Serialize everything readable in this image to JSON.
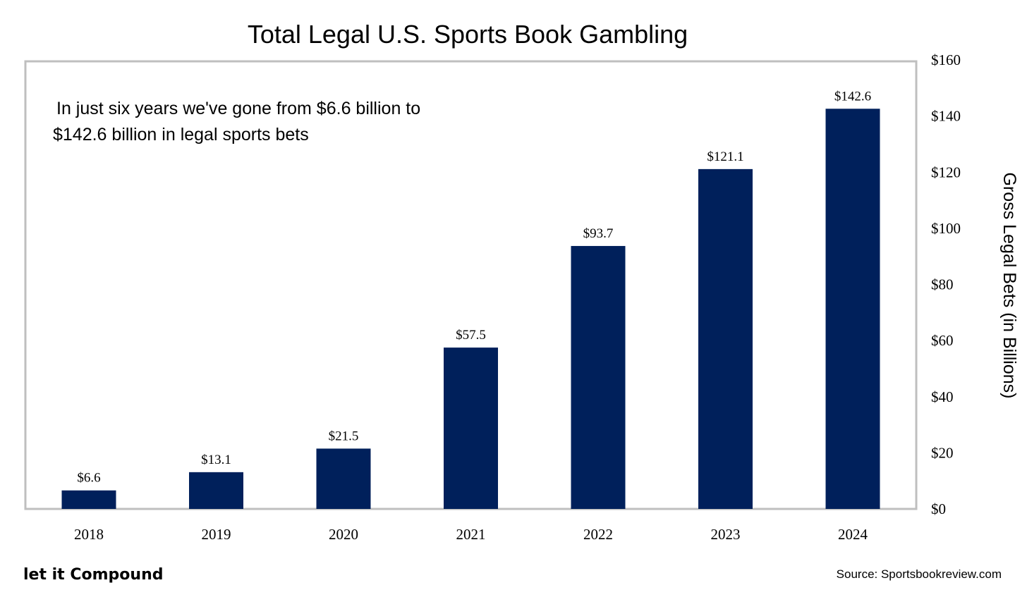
{
  "chart_data": {
    "type": "bar",
    "title": "Total Legal U.S. Sports Book Gambling",
    "annotation": [
      "In just six years we've gone from $6.6 billion to",
      "$142.6 billion in legal sports bets"
    ],
    "categories": [
      "2018",
      "2019",
      "2020",
      "2021",
      "2022",
      "2023",
      "2024"
    ],
    "values": [
      6.6,
      13.1,
      21.5,
      57.5,
      93.7,
      121.1,
      142.6
    ],
    "data_labels": [
      "$6.6",
      "$13.1",
      "$21.5",
      "$57.5",
      "$93.7",
      "$121.1",
      "$142.6"
    ],
    "xlabel": "",
    "ylabel": "Gross Legal Bets (in Billions)",
    "ylim": [
      0,
      160
    ],
    "y_ticks": [
      0,
      20,
      40,
      60,
      80,
      100,
      120,
      140,
      160
    ],
    "y_tick_labels": [
      "$0",
      "$20",
      "$40",
      "$60",
      "$80",
      "$100",
      "$120",
      "$140",
      "$160"
    ],
    "y_axis_side": "right",
    "grid": false,
    "bar_color": "#00205b"
  },
  "footer": {
    "brand": "let it Compound",
    "source": "Source: Sportsbookreview.com"
  }
}
